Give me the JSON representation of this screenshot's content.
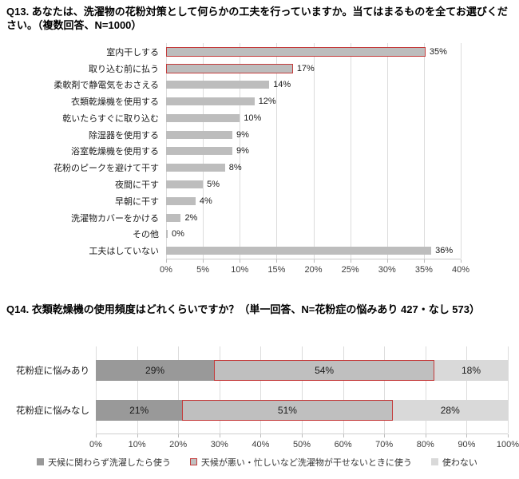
{
  "page": {
    "background": "#ffffff"
  },
  "colors": {
    "bar_gray": "#bdbdbd",
    "dark_gray": "#999999",
    "mid_gray": "#bfbfbf",
    "light_gray": "#d9d9d9",
    "highlight_red": "#c43c3c",
    "gridline": "#dcdcdc",
    "text": "#1a1a1a",
    "axis_text": "#3c3c3c"
  },
  "chart_data": [
    {
      "type": "bar",
      "title": "Q13. あなたは、洗濯物の花粉対策として何らかの工夫を行っていますか。当てはまるものを全てお選びください。（複数回答、N=1000）",
      "categories": [
        "室内干しする",
        "取り込む前に払う",
        "柔軟剤で静電気をおさえる",
        "衣類乾燥機を使用する",
        "乾いたらすぐに取り込む",
        "除湿器を使用する",
        "浴室乾燥機を使用する",
        "花粉のピークを避けて干す",
        "夜間に干す",
        "早朝に干す",
        "洗濯物カバーをかける",
        "その他",
        "工夫はしていない"
      ],
      "values": [
        35,
        17,
        14,
        12,
        10,
        9,
        9,
        8,
        5,
        4,
        2,
        0,
        36
      ],
      "value_labels": [
        "35%",
        "17%",
        "14%",
        "12%",
        "10%",
        "9%",
        "9%",
        "8%",
        "5%",
        "4%",
        "2%",
        "0%",
        "36%"
      ],
      "highlighted_indices": [
        0,
        1
      ],
      "bar_color": "#bdbdbd",
      "highlight_outline": "#c43c3c",
      "xlim": [
        0,
        40
      ],
      "x_ticks": [
        "0%",
        "5%",
        "10%",
        "15%",
        "20%",
        "25%",
        "30%",
        "35%",
        "40%"
      ],
      "grid": true
    },
    {
      "type": "stacked-bar",
      "title": "Q14. 衣類乾燥機の使用頻度はどれくらいですか？（単一回答、N=花粉症の悩みあり 427・なし 573）",
      "categories": [
        "花粉症に悩みあり",
        "花粉症に悩みなし"
      ],
      "series": [
        {
          "name": "天候に関わらず洗濯したら使う",
          "values": [
            29,
            21
          ],
          "value_labels": [
            "29%",
            "21%"
          ],
          "color": "#999999",
          "outline": null
        },
        {
          "name": "天候が悪い・忙しいなど洗濯物が干せないときに使う",
          "values": [
            54,
            51
          ],
          "value_labels": [
            "54%",
            "51%"
          ],
          "color": "#bfbfbf",
          "outline": "#c43c3c"
        },
        {
          "name": "使わない",
          "values": [
            18,
            28
          ],
          "value_labels": [
            "18%",
            "28%"
          ],
          "color": "#d9d9d9",
          "outline": null
        }
      ],
      "xlim": [
        0,
        100
      ],
      "x_ticks": [
        "0%",
        "10%",
        "20%",
        "30%",
        "40%",
        "50%",
        "60%",
        "70%",
        "80%",
        "90%",
        "100%"
      ],
      "grid": true,
      "legend_position": "bottom"
    }
  ]
}
